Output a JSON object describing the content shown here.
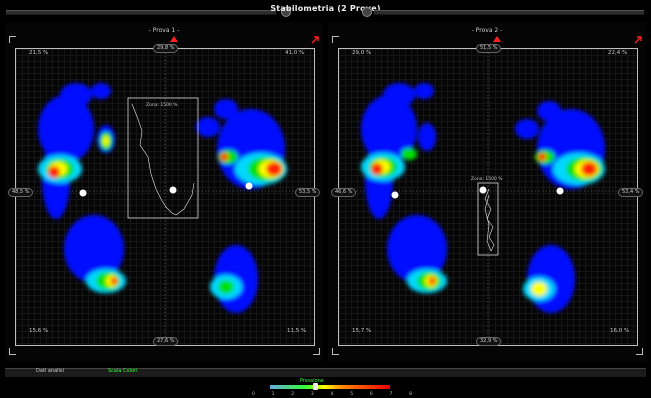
{
  "window": {
    "title": "Stabilometria (2 Prove)"
  },
  "panels": [
    {
      "phase": "- Prova 1 -",
      "corners": {
        "top_left": "21,5 %",
        "top_right": "41,0 %",
        "bottom_left": "15,6 %",
        "bottom_right": "11,5 %"
      },
      "edges": {
        "top": "29,8 %",
        "bottom": "27,6 %",
        "left": "48,5 %",
        "right": "53,5 %"
      },
      "zone_label": "Zona: 1500 %"
    },
    {
      "phase": "- Prova 2 -",
      "corners": {
        "top_left": "29,0 %",
        "top_right": "22,4 %",
        "bottom_left": "15,7 %",
        "bottom_right": "16,0 %"
      },
      "edges": {
        "top": "51,5 %",
        "bottom": "32,9 %",
        "left": "46,6 %",
        "right": "53,4 %"
      },
      "zone_label": "Zona: 1500 %"
    }
  ],
  "bottom": {
    "tab_left": "Dati analisi",
    "tab_right": "Scala Colori",
    "legend_title": "Pressione",
    "ticks": [
      "0",
      "1",
      "2",
      "3",
      "4",
      "5",
      "6",
      "7",
      "8"
    ]
  },
  "colors": {
    "low": "#0000ff",
    "mid": "#00e000",
    "high": "#ffff00",
    "peak": "#ff2000",
    "alarm": "#ff2020"
  },
  "icons": [
    "alarm-arrow-icon",
    "close-icon",
    "cog-point-icon"
  ]
}
